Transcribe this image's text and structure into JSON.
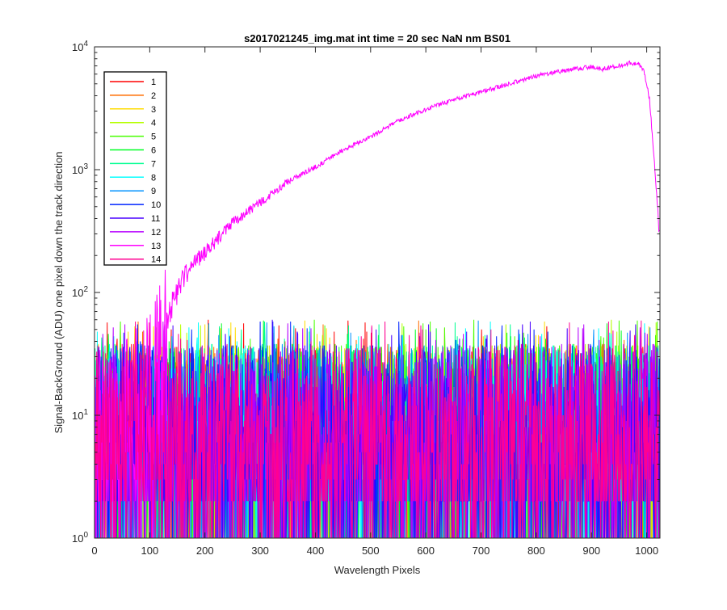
{
  "chart_data": {
    "type": "line",
    "title": "s2017021245_img.mat int time = 20 sec  NaN nm BS01",
    "xlabel": "Wavelength Pixels",
    "ylabel": "Signal-BackGround (ADU) one pixel down the track direction",
    "xlim": [
      0,
      1024
    ],
    "ylim": [
      1,
      10000
    ],
    "y_scale": "log",
    "grid": false,
    "legend_position": "top-left",
    "x_ticks": [
      0,
      100,
      200,
      300,
      400,
      500,
      600,
      700,
      800,
      900,
      1000
    ],
    "x_tick_labels": [
      "0",
      "100",
      "200",
      "300",
      "400",
      "500",
      "600",
      "700",
      "800",
      "900",
      "1000"
    ],
    "y_ticks": [
      {
        "value": 1,
        "base": "10",
        "exp": "0"
      },
      {
        "value": 10,
        "base": "10",
        "exp": "1"
      },
      {
        "value": 100,
        "base": "10",
        "exp": "2"
      },
      {
        "value": 1000,
        "base": "10",
        "exp": "3"
      },
      {
        "value": 10000,
        "base": "10",
        "exp": "4"
      }
    ],
    "series": [
      {
        "name": "1",
        "color": "#ff0000",
        "kind": "noise",
        "typical": [
          2,
          35
        ]
      },
      {
        "name": "2",
        "color": "#ff6e00",
        "kind": "noise",
        "typical": [
          2,
          35
        ]
      },
      {
        "name": "3",
        "color": "#ffdb00",
        "kind": "noise",
        "typical": [
          2,
          35
        ]
      },
      {
        "name": "4",
        "color": "#b6ff00",
        "kind": "noise",
        "typical": [
          2,
          35
        ]
      },
      {
        "name": "5",
        "color": "#49ff00",
        "kind": "noise",
        "typical": [
          2,
          35
        ]
      },
      {
        "name": "6",
        "color": "#00ff24",
        "kind": "noise",
        "typical": [
          2,
          35
        ]
      },
      {
        "name": "7",
        "color": "#00ff92",
        "kind": "noise",
        "typical": [
          2,
          35
        ]
      },
      {
        "name": "8",
        "color": "#00ffff",
        "kind": "noise",
        "typical": [
          2,
          35
        ]
      },
      {
        "name": "9",
        "color": "#0092ff",
        "kind": "noise",
        "typical": [
          2,
          35
        ]
      },
      {
        "name": "10",
        "color": "#0024ff",
        "kind": "noise",
        "typical": [
          2,
          35
        ]
      },
      {
        "name": "11",
        "color": "#4900ff",
        "kind": "noise",
        "typical": [
          2,
          35
        ]
      },
      {
        "name": "12",
        "color": "#b600ff",
        "kind": "noise",
        "typical": [
          2,
          35
        ]
      },
      {
        "name": "13",
        "color": "#ff00ff",
        "kind": "signal",
        "x": [
          0,
          50,
          100,
          120,
          140,
          160,
          180,
          200,
          250,
          300,
          350,
          400,
          450,
          500,
          550,
          600,
          650,
          700,
          750,
          800,
          850,
          900,
          920,
          950,
          970,
          985,
          995,
          1005,
          1015,
          1024
        ],
        "y": [
          10,
          14,
          25,
          45,
          80,
          130,
          180,
          210,
          370,
          540,
          800,
          1050,
          1450,
          1850,
          2500,
          3100,
          3700,
          4300,
          5000,
          5800,
          6400,
          6900,
          6600,
          7000,
          7400,
          7300,
          6400,
          3800,
          1000,
          250
        ]
      },
      {
        "name": "14",
        "color": "#ff0092",
        "kind": "noise",
        "typical": [
          2,
          35
        ]
      }
    ]
  }
}
